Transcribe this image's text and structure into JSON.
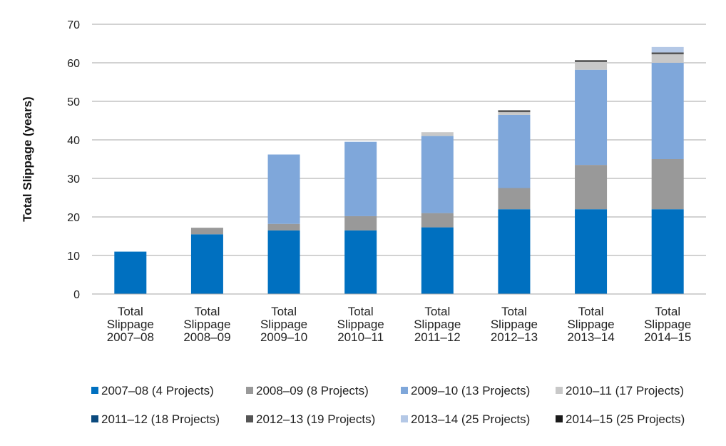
{
  "chart_data": {
    "type": "bar",
    "stacked": true,
    "title": "",
    "xlabel": "",
    "ylabel": "Total Slippage (years)",
    "ylim": [
      0,
      70
    ],
    "yticks": [
      0,
      10,
      20,
      30,
      40,
      50,
      60,
      70
    ],
    "grid": true,
    "legend_position": "bottom",
    "categories": [
      [
        "Total",
        "Slippage",
        "2007–08"
      ],
      [
        "Total",
        "Slippage",
        "2008–09"
      ],
      [
        "Total",
        "Slippage",
        "2009–10"
      ],
      [
        "Total",
        "Slippage",
        "2010–11"
      ],
      [
        "Total",
        "Slippage",
        "2011–12"
      ],
      [
        "Total",
        "Slippage",
        "2012–13"
      ],
      [
        "Total",
        "Slippage",
        "2013–14"
      ],
      [
        "Total",
        "Slippage",
        "2014–15"
      ]
    ],
    "series": [
      {
        "name": "2007–08 (4 Projects)",
        "color": "#0070C0",
        "values": [
          11,
          15.5,
          16.5,
          16.5,
          17.3,
          22,
          22,
          22
        ]
      },
      {
        "name": "2008–09 (8 Projects)",
        "color": "#999999",
        "values": [
          0,
          1.7,
          1.7,
          3.7,
          3.7,
          5.5,
          11.5,
          13
        ]
      },
      {
        "name": "2009–10 (13 Projects)",
        "color": "#7FA7DA",
        "values": [
          0,
          0,
          18,
          19.3,
          20,
          19,
          24.7,
          25
        ]
      },
      {
        "name": "2010–11 (17 Projects)",
        "color": "#C8C8C8",
        "values": [
          0,
          0,
          0,
          0,
          1,
          0.7,
          2,
          2.2
        ]
      },
      {
        "name": "2011–12 (18 Projects)",
        "color": "#0B4A7E",
        "values": [
          0,
          0,
          0,
          0,
          0,
          0,
          0,
          0
        ]
      },
      {
        "name": "2012–13 (19 Projects)",
        "color": "#555555",
        "values": [
          0,
          0,
          0,
          0,
          0,
          0.5,
          0.5,
          0.5
        ]
      },
      {
        "name": "2013–14 (25 Projects)",
        "color": "#B4C8E6",
        "values": [
          0,
          0,
          0,
          0,
          0,
          0,
          0,
          1.4
        ]
      },
      {
        "name": "2014–15 (25 Projects)",
        "color": "#1A1A1A",
        "values": [
          0,
          0,
          0,
          0,
          0,
          0,
          0,
          0
        ]
      }
    ]
  }
}
